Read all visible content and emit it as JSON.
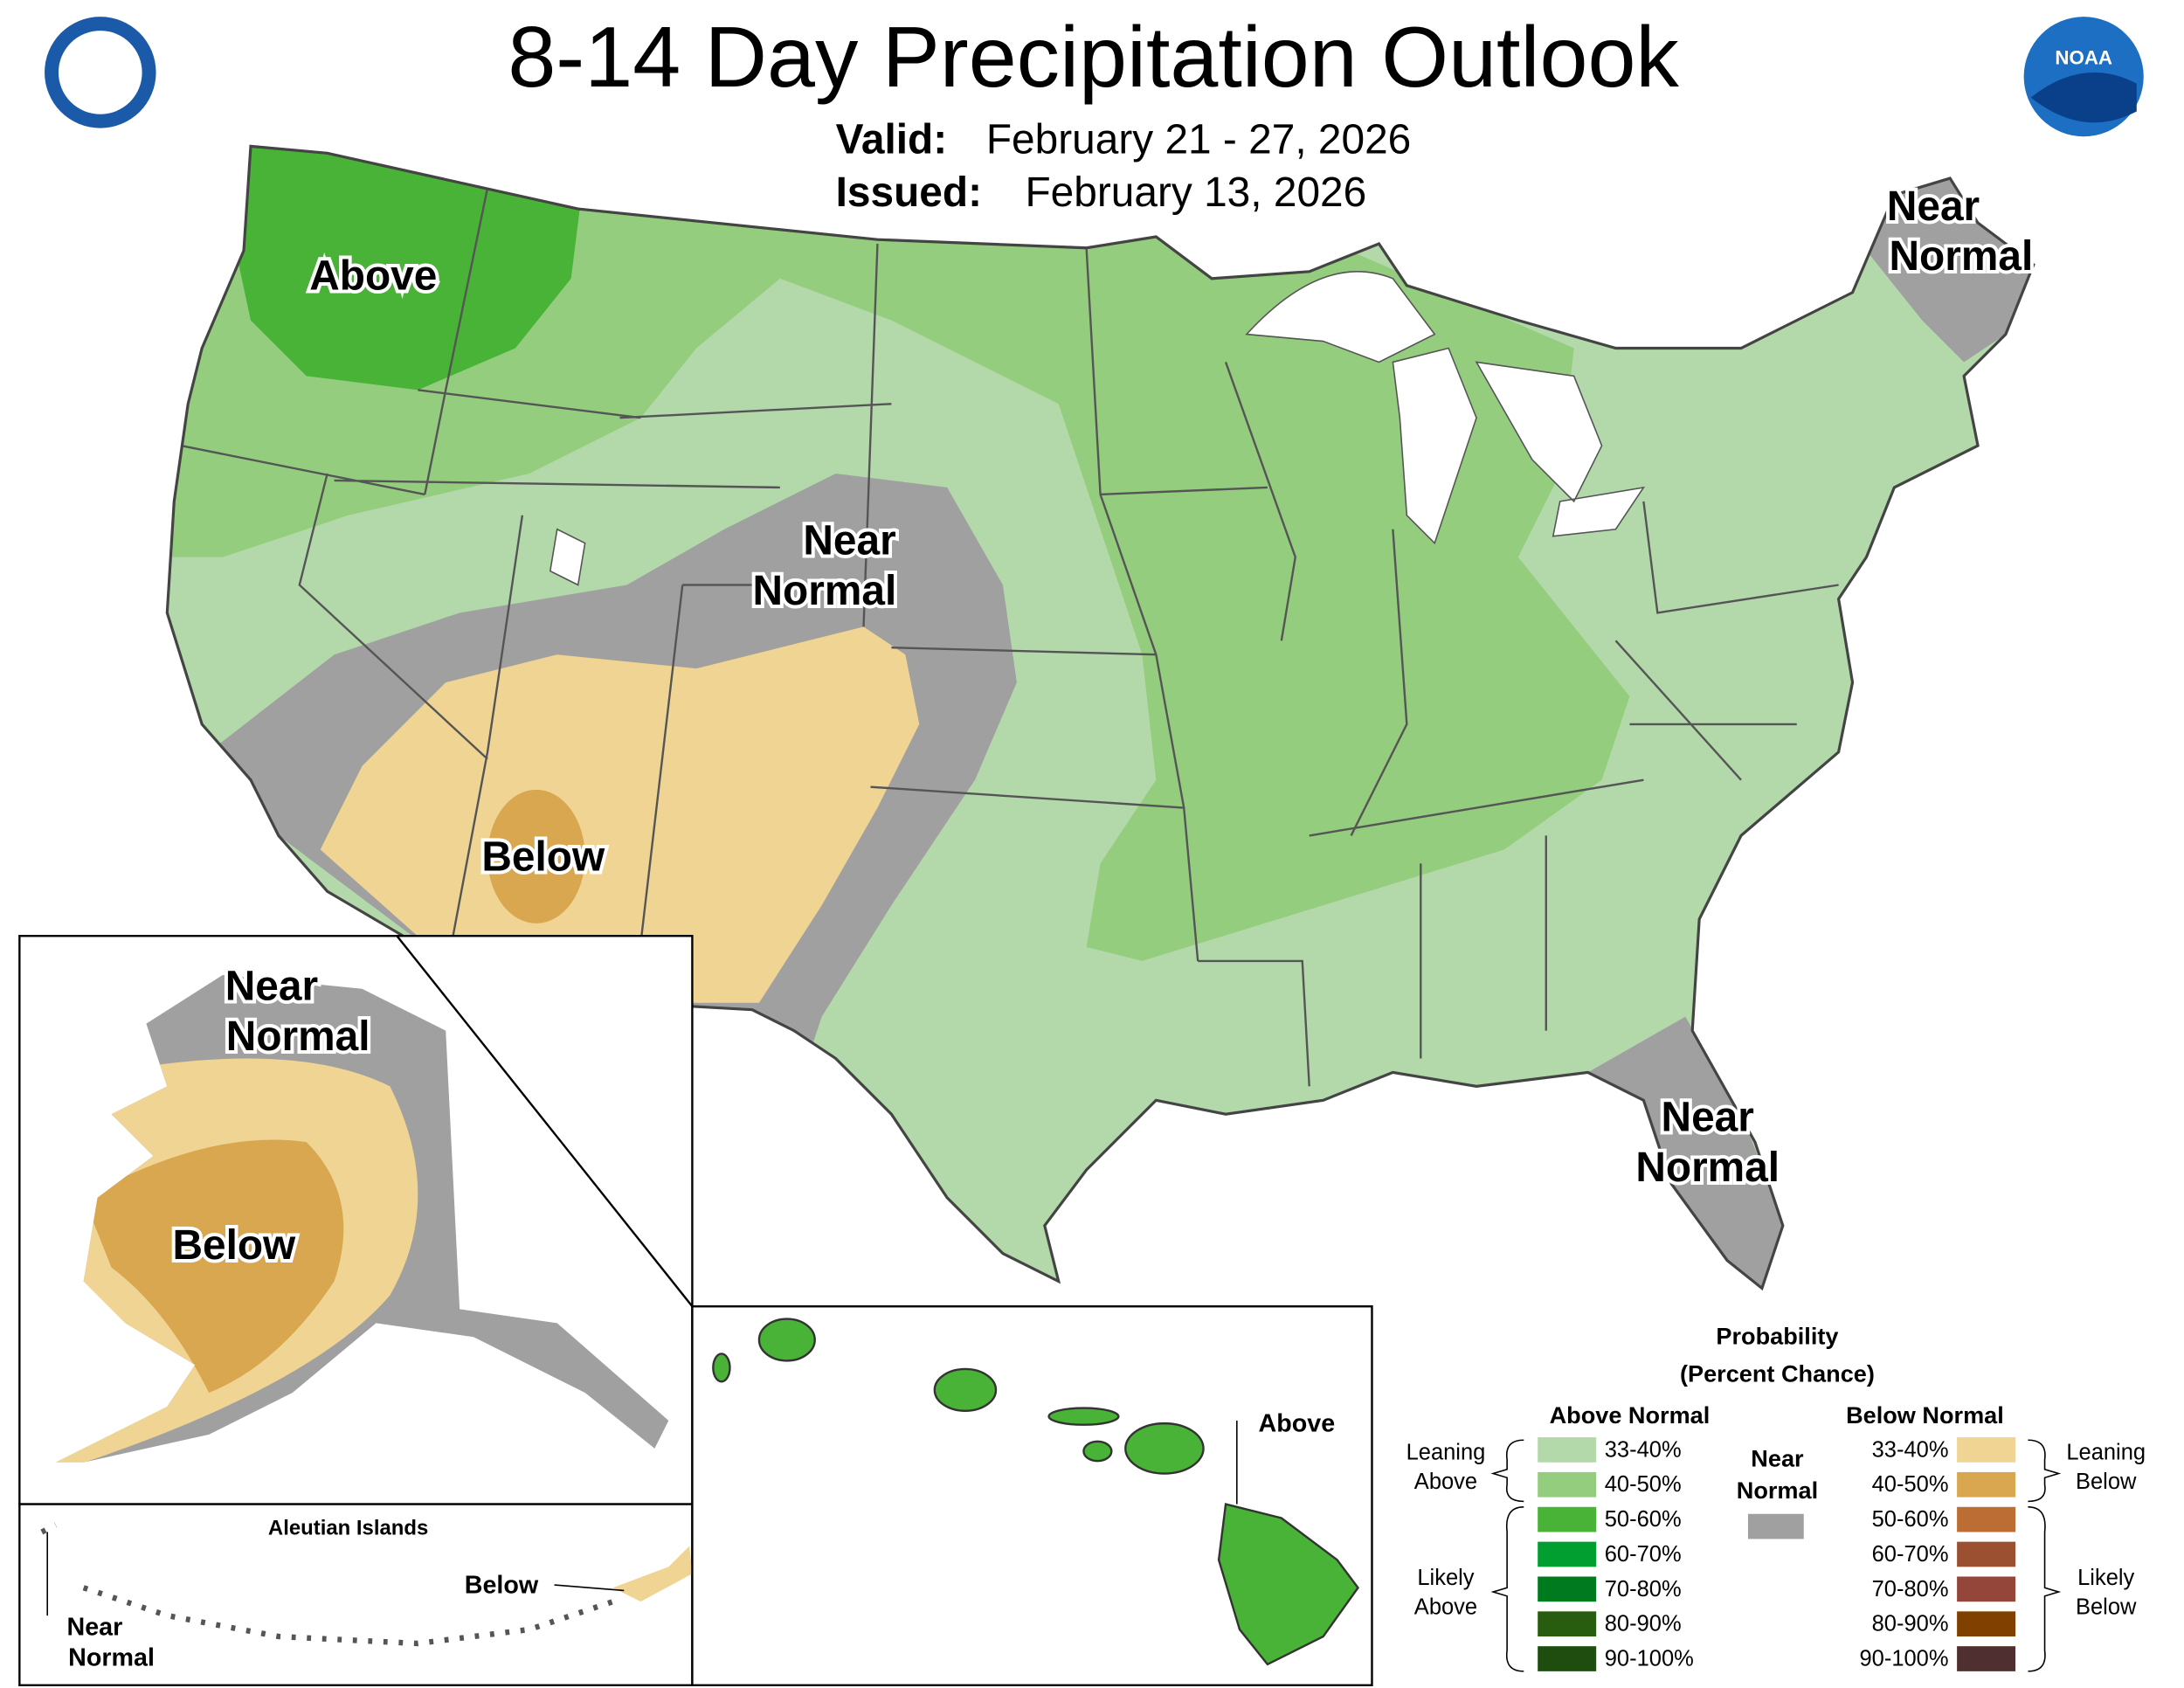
{
  "header": {
    "title": "8-14 Day Precipitation Outlook",
    "valid_label": "Valid:",
    "valid": "February 21 - 27, 2026",
    "issued_label": "Issued:",
    "issued": "February 13, 2026"
  },
  "logos": {
    "noaa": "NOAA"
  },
  "conus_labels": [
    [
      "Above"
    ],
    [
      "Near",
      "Normal"
    ],
    [
      "Below"
    ],
    [
      "Near",
      "Normal"
    ],
    [
      "Near",
      "Normal"
    ]
  ],
  "alaska": {
    "labels": [
      [
        "Near",
        "Normal"
      ],
      [
        "Below"
      ]
    ]
  },
  "aleutians": {
    "title": "Aleutian Islands",
    "labels": [
      [
        "Below"
      ],
      [
        "Near",
        "Normal"
      ]
    ]
  },
  "hawaii": {
    "labels": [
      "Above"
    ]
  },
  "legend": {
    "title": [
      "Probability",
      "(Percent Chance)"
    ],
    "above_heading": "Above Normal",
    "below_heading": "Below Normal",
    "near_normal": {
      "lines": [
        "Near",
        "Normal"
      ],
      "color": "#a0a0a0"
    },
    "leaning_above": [
      "Leaning",
      "Above"
    ],
    "likely_above": [
      "Likely",
      "Above"
    ],
    "leaning_below": [
      "Leaning",
      "Below"
    ],
    "likely_below": [
      "Likely",
      "Below"
    ],
    "above": [
      {
        "range": "33-40%",
        "color": "#b3d9ab"
      },
      {
        "range": "40-50%",
        "color": "#94cd7e"
      },
      {
        "range": "50-60%",
        "color": "#48b336"
      },
      {
        "range": "60-70%",
        "color": "#009f2f"
      },
      {
        "range": "70-80%",
        "color": "#007a1e"
      },
      {
        "range": "80-90%",
        "color": "#285d10"
      },
      {
        "range": "90-100%",
        "color": "#1e4d0f"
      }
    ],
    "below": [
      {
        "range": "33-40%",
        "color": "#f0d493"
      },
      {
        "range": "40-50%",
        "color": "#d8a750"
      },
      {
        "range": "50-60%",
        "color": "#bb6d33"
      },
      {
        "range": "60-70%",
        "color": "#9b5031"
      },
      {
        "range": "70-80%",
        "color": "#934639"
      },
      {
        "range": "80-90%",
        "color": "#804000"
      },
      {
        "range": "90-100%",
        "color": "#4f2f2f"
      }
    ]
  }
}
